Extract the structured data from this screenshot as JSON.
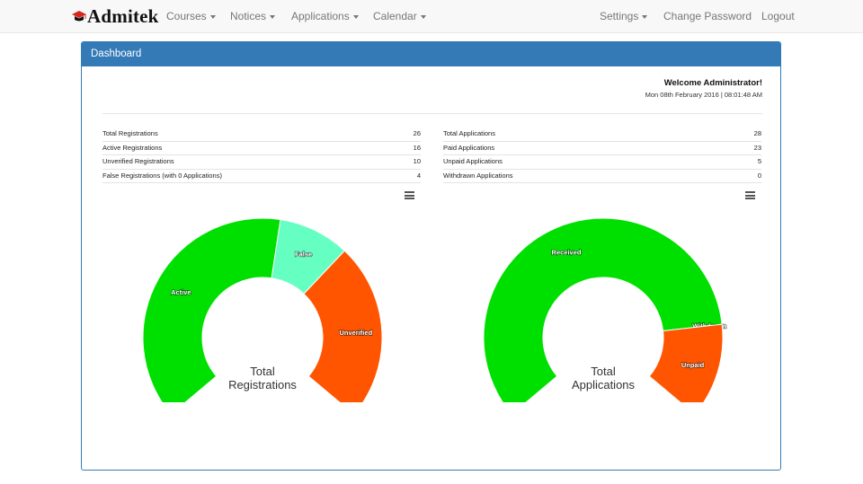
{
  "navbar": {
    "brand": "Admitek",
    "menu": [
      {
        "label": "Courses",
        "dropdown": true
      },
      {
        "label": "Notices",
        "dropdown": true
      },
      {
        "label": "Applications",
        "dropdown": true
      },
      {
        "label": "Calendar",
        "dropdown": true
      }
    ],
    "right": [
      {
        "label": "Settings",
        "dropdown": true
      },
      {
        "label": "Change Password",
        "dropdown": false
      },
      {
        "label": "Logout",
        "dropdown": false
      }
    ]
  },
  "panel": {
    "title": "Dashboard"
  },
  "welcome": {
    "greeting": "Welcome Administrator!",
    "datetime": "Mon 08th February 2016 | 08:01:48 AM"
  },
  "registrations": [
    {
      "label": "Total Registrations",
      "value": "26"
    },
    {
      "label": "Active Registrations",
      "value": "16"
    },
    {
      "label": "Unverified Registrations",
      "value": "10"
    },
    {
      "label": "False Registrations (with 0 Applications)",
      "value": "4"
    }
  ],
  "applications": [
    {
      "label": "Total Applications",
      "value": "28"
    },
    {
      "label": "Paid Applications",
      "value": "23"
    },
    {
      "label": "Unpaid Applications",
      "value": "5"
    },
    {
      "label": "Withdrawn Applications",
      "value": "0"
    }
  ],
  "colors": {
    "brand_blue": "#337ab7",
    "green": "#00e000",
    "orange": "#ff5500",
    "mint": "#66ffc2"
  },
  "chart_data": [
    {
      "type": "pie",
      "variant": "semi-donut",
      "title": "Total Registrations",
      "center_label": [
        "Total",
        "Registrations"
      ],
      "categories": [
        "Active",
        "False",
        "Unverified"
      ],
      "values": [
        16,
        4,
        10
      ],
      "colors": [
        "#00e000",
        "#66ffc2",
        "#ff5500"
      ]
    },
    {
      "type": "pie",
      "variant": "semi-donut",
      "title": "Total Applications",
      "center_label": [
        "Total",
        "Applications"
      ],
      "categories": [
        "Received",
        "Withdrawn",
        "Unpaid"
      ],
      "values": [
        23,
        0,
        5
      ],
      "colors": [
        "#00e000",
        "#ff5500",
        "#ff5500"
      ]
    }
  ]
}
